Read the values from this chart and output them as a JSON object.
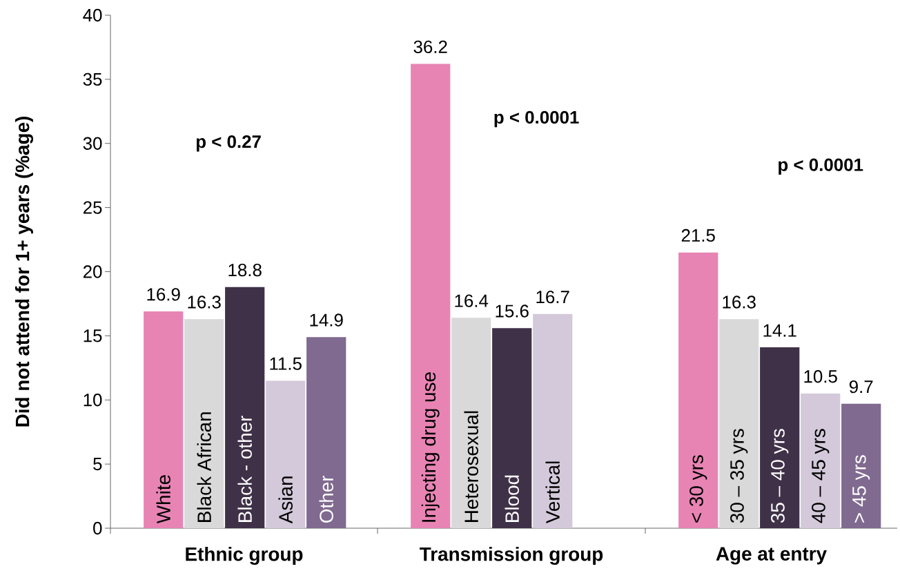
{
  "chart_data": [
    {
      "type": "bar",
      "ylabel": "Did not attend for 1+ years (%age)",
      "xlabel": "Ethnic group",
      "categories": [
        "White",
        "Black African",
        "Black - other",
        "Asian",
        "Other"
      ],
      "values": [
        16.9,
        16.3,
        18.8,
        11.5,
        14.9
      ],
      "colors": [
        "#e884b4",
        "#d9d9d9",
        "#3f3147",
        "#d3c9da",
        "#806a90"
      ],
      "ylim": [
        0,
        40
      ],
      "yticks": [
        0,
        5,
        10,
        15,
        20,
        25,
        30,
        35,
        40
      ],
      "data_labels": true,
      "annotations": [
        "p < 0.27"
      ]
    },
    {
      "type": "bar",
      "xlabel": "Transmission group",
      "categories": [
        "Injecting drug use",
        "Heterosexual",
        "Blood",
        "Vertical",
        null
      ],
      "values": [
        36.2,
        16.4,
        15.6,
        16.7,
        null
      ],
      "colors": [
        "#e884b4",
        "#d9d9d9",
        "#3f3147",
        "#d3c9da",
        null
      ],
      "ylim": [
        0,
        40
      ],
      "tick_labels": "x",
      "data_labels": true,
      "annotations": [
        "p < 0.0001"
      ]
    },
    {
      "type": "bar",
      "xlabel": "Age at entry",
      "categories": [
        "< 30 yrs",
        "30 – 35 yrs",
        "35 – 40 yrs",
        "40 – 45 yrs",
        "> 45 yrs"
      ],
      "values": [
        21.5,
        16.3,
        14.1,
        10.5,
        9.7
      ],
      "colors": [
        "#e884b4",
        "#d9d9d9",
        "#3f3147",
        "#d3c9da",
        "#806a90"
      ],
      "ylim": [
        0,
        40
      ],
      "tick_labels": "x",
      "data_labels": true,
      "annotations": [
        "p < 0.0001"
      ]
    }
  ]
}
